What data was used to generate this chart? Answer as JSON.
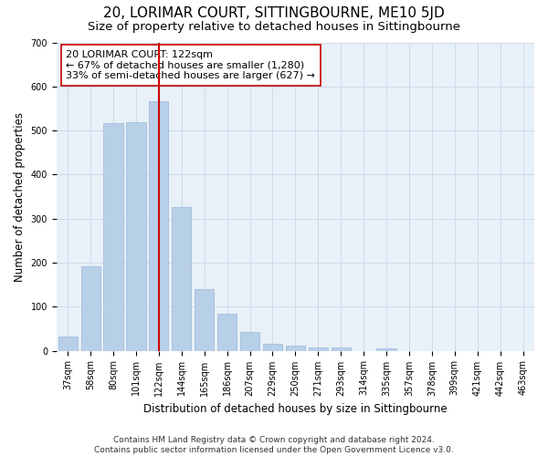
{
  "title": "20, LORIMAR COURT, SITTINGBOURNE, ME10 5JD",
  "subtitle": "Size of property relative to detached houses in Sittingbourne",
  "xlabel": "Distribution of detached houses by size in Sittingbourne",
  "ylabel": "Number of detached properties",
  "categories": [
    "37sqm",
    "58sqm",
    "80sqm",
    "101sqm",
    "122sqm",
    "144sqm",
    "165sqm",
    "186sqm",
    "207sqm",
    "229sqm",
    "250sqm",
    "271sqm",
    "293sqm",
    "314sqm",
    "335sqm",
    "357sqm",
    "378sqm",
    "399sqm",
    "421sqm",
    "442sqm",
    "463sqm"
  ],
  "values": [
    32,
    192,
    516,
    519,
    567,
    327,
    140,
    85,
    43,
    15,
    12,
    8,
    8,
    0,
    6,
    0,
    0,
    0,
    0,
    0,
    0
  ],
  "bar_color": "#b8cfe8",
  "bar_edgecolor": "#9ab8d8",
  "vline_x_index": 4,
  "vline_color": "#cc0000",
  "annotation_line1": "20 LORIMAR COURT: 122sqm",
  "annotation_line2": "← 67% of detached houses are smaller (1,280)",
  "annotation_line3": "33% of semi-detached houses are larger (627) →",
  "annotation_box_color": "#ffffff",
  "annotation_box_edgecolor": "#cc0000",
  "ylim": [
    0,
    700
  ],
  "yticks": [
    0,
    100,
    200,
    300,
    400,
    500,
    600,
    700
  ],
  "grid_color": "#c8d8e8",
  "bg_color": "#e8f0f8",
  "footnote": "Contains HM Land Registry data © Crown copyright and database right 2024.\nContains public sector information licensed under the Open Government Licence v3.0.",
  "title_fontsize": 11,
  "subtitle_fontsize": 9.5,
  "xlabel_fontsize": 8.5,
  "ylabel_fontsize": 8.5,
  "tick_fontsize": 7,
  "annotation_fontsize": 8,
  "footnote_fontsize": 6.5
}
